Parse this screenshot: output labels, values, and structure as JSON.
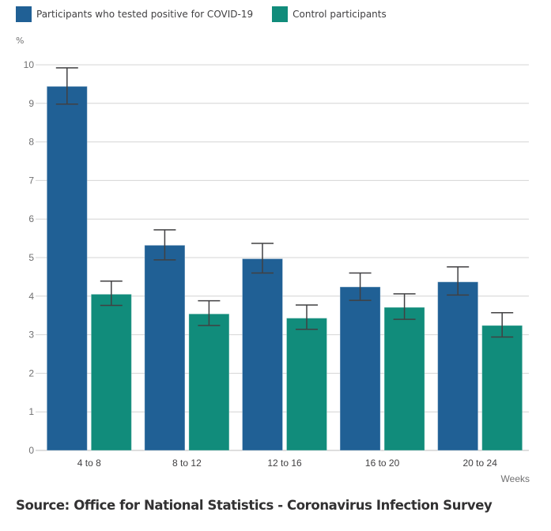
{
  "chart_data": {
    "type": "bar",
    "title": "",
    "xlabel": "Weeks",
    "ylabel": "%",
    "ylim": [
      0,
      10
    ],
    "yticks": [
      0,
      1,
      2,
      3,
      4,
      5,
      6,
      7,
      8,
      9,
      10
    ],
    "grid": true,
    "legend_position": "top-left",
    "categories": [
      "4 to 8",
      "8 to 12",
      "12 to 16",
      "16 to 20",
      "20 to 24"
    ],
    "series": [
      {
        "name": "Participants who tested positive for COVID-19",
        "color": "#206095",
        "values": [
          9.44,
          5.32,
          4.97,
          4.24,
          4.37
        ],
        "error_lower": [
          8.98,
          4.94,
          4.6,
          3.89,
          4.03
        ],
        "error_upper": [
          9.92,
          5.72,
          5.37,
          4.6,
          4.76
        ]
      },
      {
        "name": "Control participants",
        "color": "#118c7b",
        "values": [
          4.05,
          3.54,
          3.43,
          3.71,
          3.24
        ],
        "error_lower": [
          3.76,
          3.24,
          3.14,
          3.4,
          2.94
        ],
        "error_upper": [
          4.39,
          3.88,
          3.77,
          4.06,
          3.57
        ]
      }
    ]
  },
  "legend": {
    "items": [
      {
        "label": "Participants who tested positive for COVID-19",
        "color": "#206095"
      },
      {
        "label": "Control participants",
        "color": "#118c7b"
      }
    ]
  },
  "axis": {
    "y_unit": "%",
    "x_title": "Weeks"
  },
  "footer": {
    "source": "Source: Office for National Statistics - Coronavirus Infection Survey"
  }
}
